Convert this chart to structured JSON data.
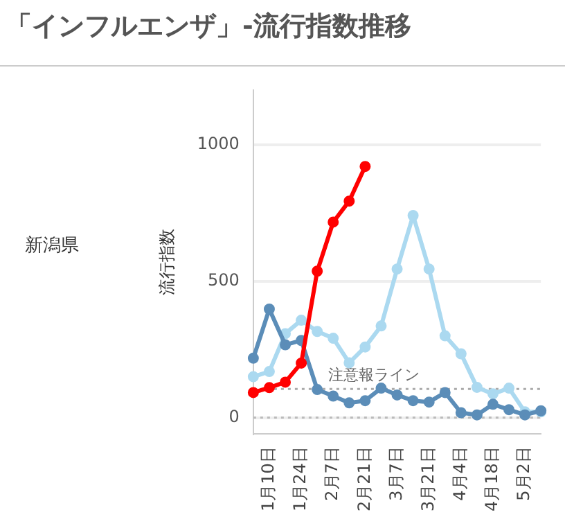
{
  "chart_data": {
    "type": "line",
    "title": "「インフルエンザ」-流行指数推移",
    "ylabel": "流行指数",
    "annotations": [
      "新潟県"
    ],
    "categories": [
      null,
      "1月10日",
      null,
      "1月24日",
      null,
      "2月7日",
      null,
      "2月21日",
      null,
      "3月7日",
      null,
      "3月21日",
      null,
      "4月4日",
      null,
      "4月18日",
      null,
      "5月2日",
      null
    ],
    "series": [
      {
        "color": "#abd9f0",
        "values": [
          150,
          169,
          308,
          357,
          316,
          291,
          201,
          259,
          336,
          545,
          741,
          545,
          300,
          234,
          111,
          87,
          108,
          21,
          21
        ]
      },
      {
        "color": "#5b8db8",
        "values": [
          218,
          398,
          267,
          283,
          103,
          79,
          54,
          62,
          108,
          83,
          62,
          57,
          92,
          18,
          10,
          49,
          29,
          10,
          25
        ]
      },
      {
        "color": "#ff0000",
        "values": [
          92,
          110,
          130,
          200,
          537,
          717,
          794,
          921,
          null,
          null,
          null,
          null,
          null,
          null,
          null,
          null,
          null,
          null,
          null
        ]
      }
    ],
    "ylim": [
      -60,
      1200
    ],
    "yticks": [
      0,
      500,
      1000
    ],
    "grid": "y",
    "legend": false,
    "marker": "circle",
    "line_style": "solid",
    "ref_lines": [
      {
        "axis": "y",
        "value": 105,
        "label": "注意報ライン",
        "color": "#aaaaaa",
        "line_style": "dotted"
      },
      {
        "axis": "y",
        "value": 0,
        "label": null,
        "color": "#bbbbbb",
        "line_style": "dotted"
      }
    ]
  }
}
